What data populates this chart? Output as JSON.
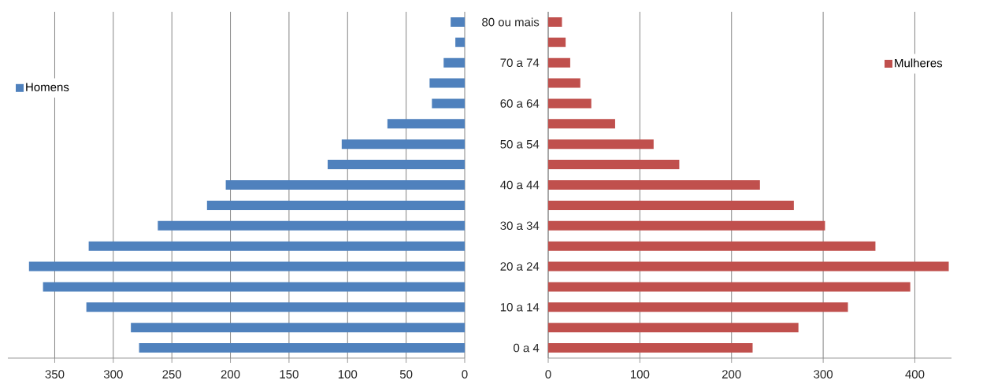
{
  "chart_data": [
    {
      "type": "bar",
      "orientation": "horizontal",
      "categories": [
        null,
        null,
        null,
        null,
        null,
        null,
        null,
        null,
        null,
        null,
        null,
        null,
        null,
        null,
        null,
        null,
        null
      ],
      "series": [
        {
          "name": "Homens",
          "color": "#4f81bd",
          "values": [
            12,
            8,
            18,
            30,
            28,
            66,
            105,
            117,
            204,
            220,
            262,
            321,
            372,
            360,
            323,
            285,
            278
          ]
        }
      ],
      "xlim": [
        390,
        0
      ],
      "xticks": [
        350,
        300,
        250,
        200,
        150,
        100,
        50,
        0
      ],
      "grid": "x",
      "legend": "left",
      "tick_labels": "x"
    },
    {
      "type": "bar",
      "orientation": "horizontal",
      "categories": [
        "80 ou mais",
        null,
        "70 a 74",
        null,
        "60 a 64",
        null,
        "50 a 54",
        null,
        "40 a 44",
        null,
        "30 a 34",
        null,
        "20 a 24",
        null,
        "10 a 14",
        null,
        "0 a 4"
      ],
      "series": [
        {
          "name": "Mulheres",
          "color": "#c0504d",
          "values": [
            15,
            19,
            24,
            35,
            47,
            73,
            115,
            143,
            231,
            268,
            302,
            357,
            437,
            395,
            327,
            273,
            223
          ]
        }
      ],
      "xlim": [
        0,
        440
      ],
      "xticks": [
        0,
        100,
        200,
        300,
        400
      ],
      "grid": "x",
      "legend": "right"
    }
  ]
}
